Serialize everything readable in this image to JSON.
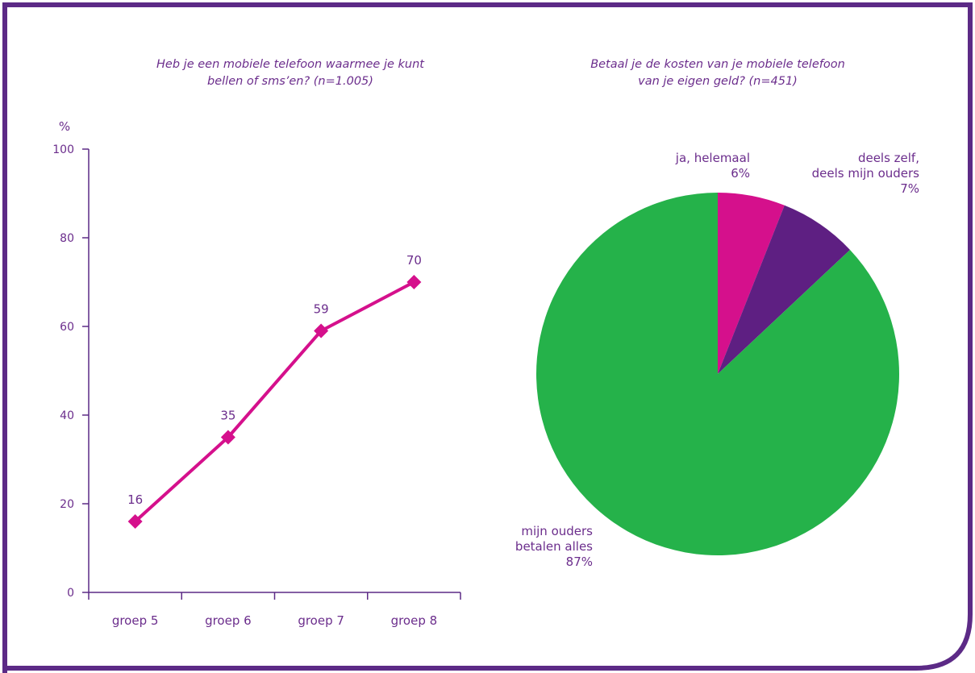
{
  "colors": {
    "frame": "#5c2a86",
    "text": "#6b2d8c",
    "line": "#d5108c",
    "pie_magenta": "#d5108c",
    "pie_purple": "#5e1f82",
    "pie_green": "#25b24a"
  },
  "chart_data": [
    {
      "type": "line",
      "title": "Heb je een mobiele telefoon waarmee je kunt bellen of sms’en? (n=1.005)",
      "title_lines": [
        "Heb je een mobiele telefoon waarmee je kunt",
        "bellen of sms’en? (n=1.005)"
      ],
      "ylabel": "%",
      "xlabel": "",
      "categories": [
        "groep 5",
        "groep 6",
        "groep 7",
        "groep 8"
      ],
      "series": [
        {
          "values": [
            16,
            35,
            59,
            70
          ]
        }
      ],
      "data_labels": [
        "16",
        "35",
        "59",
        "70"
      ],
      "ylim": [
        0,
        100
      ],
      "yticks": [
        0,
        20,
        40,
        60,
        80,
        100
      ],
      "ytick_labels": [
        "0",
        "20",
        "40",
        "60",
        "80",
        "100"
      ],
      "grid": false,
      "marker": "diamond"
    },
    {
      "type": "pie",
      "title": "Betaal je de kosten van je mobiele telefoon van je eigen geld? (n=451)",
      "title_lines": [
        "Betaal je de kosten van je mobiele telefoon",
        "van je eigen geld? (n=451)"
      ],
      "slices": [
        {
          "label_lines": [
            "ja, helemaal",
            "6%"
          ],
          "value": 6
        },
        {
          "label_lines": [
            "deels zelf,",
            "deels mijn ouders",
            "7%"
          ],
          "value": 7
        },
        {
          "label_lines": [
            "mijn ouders",
            "betalen alles",
            "87%"
          ],
          "value": 87
        }
      ],
      "start": "top",
      "direction": "clockwise"
    }
  ]
}
